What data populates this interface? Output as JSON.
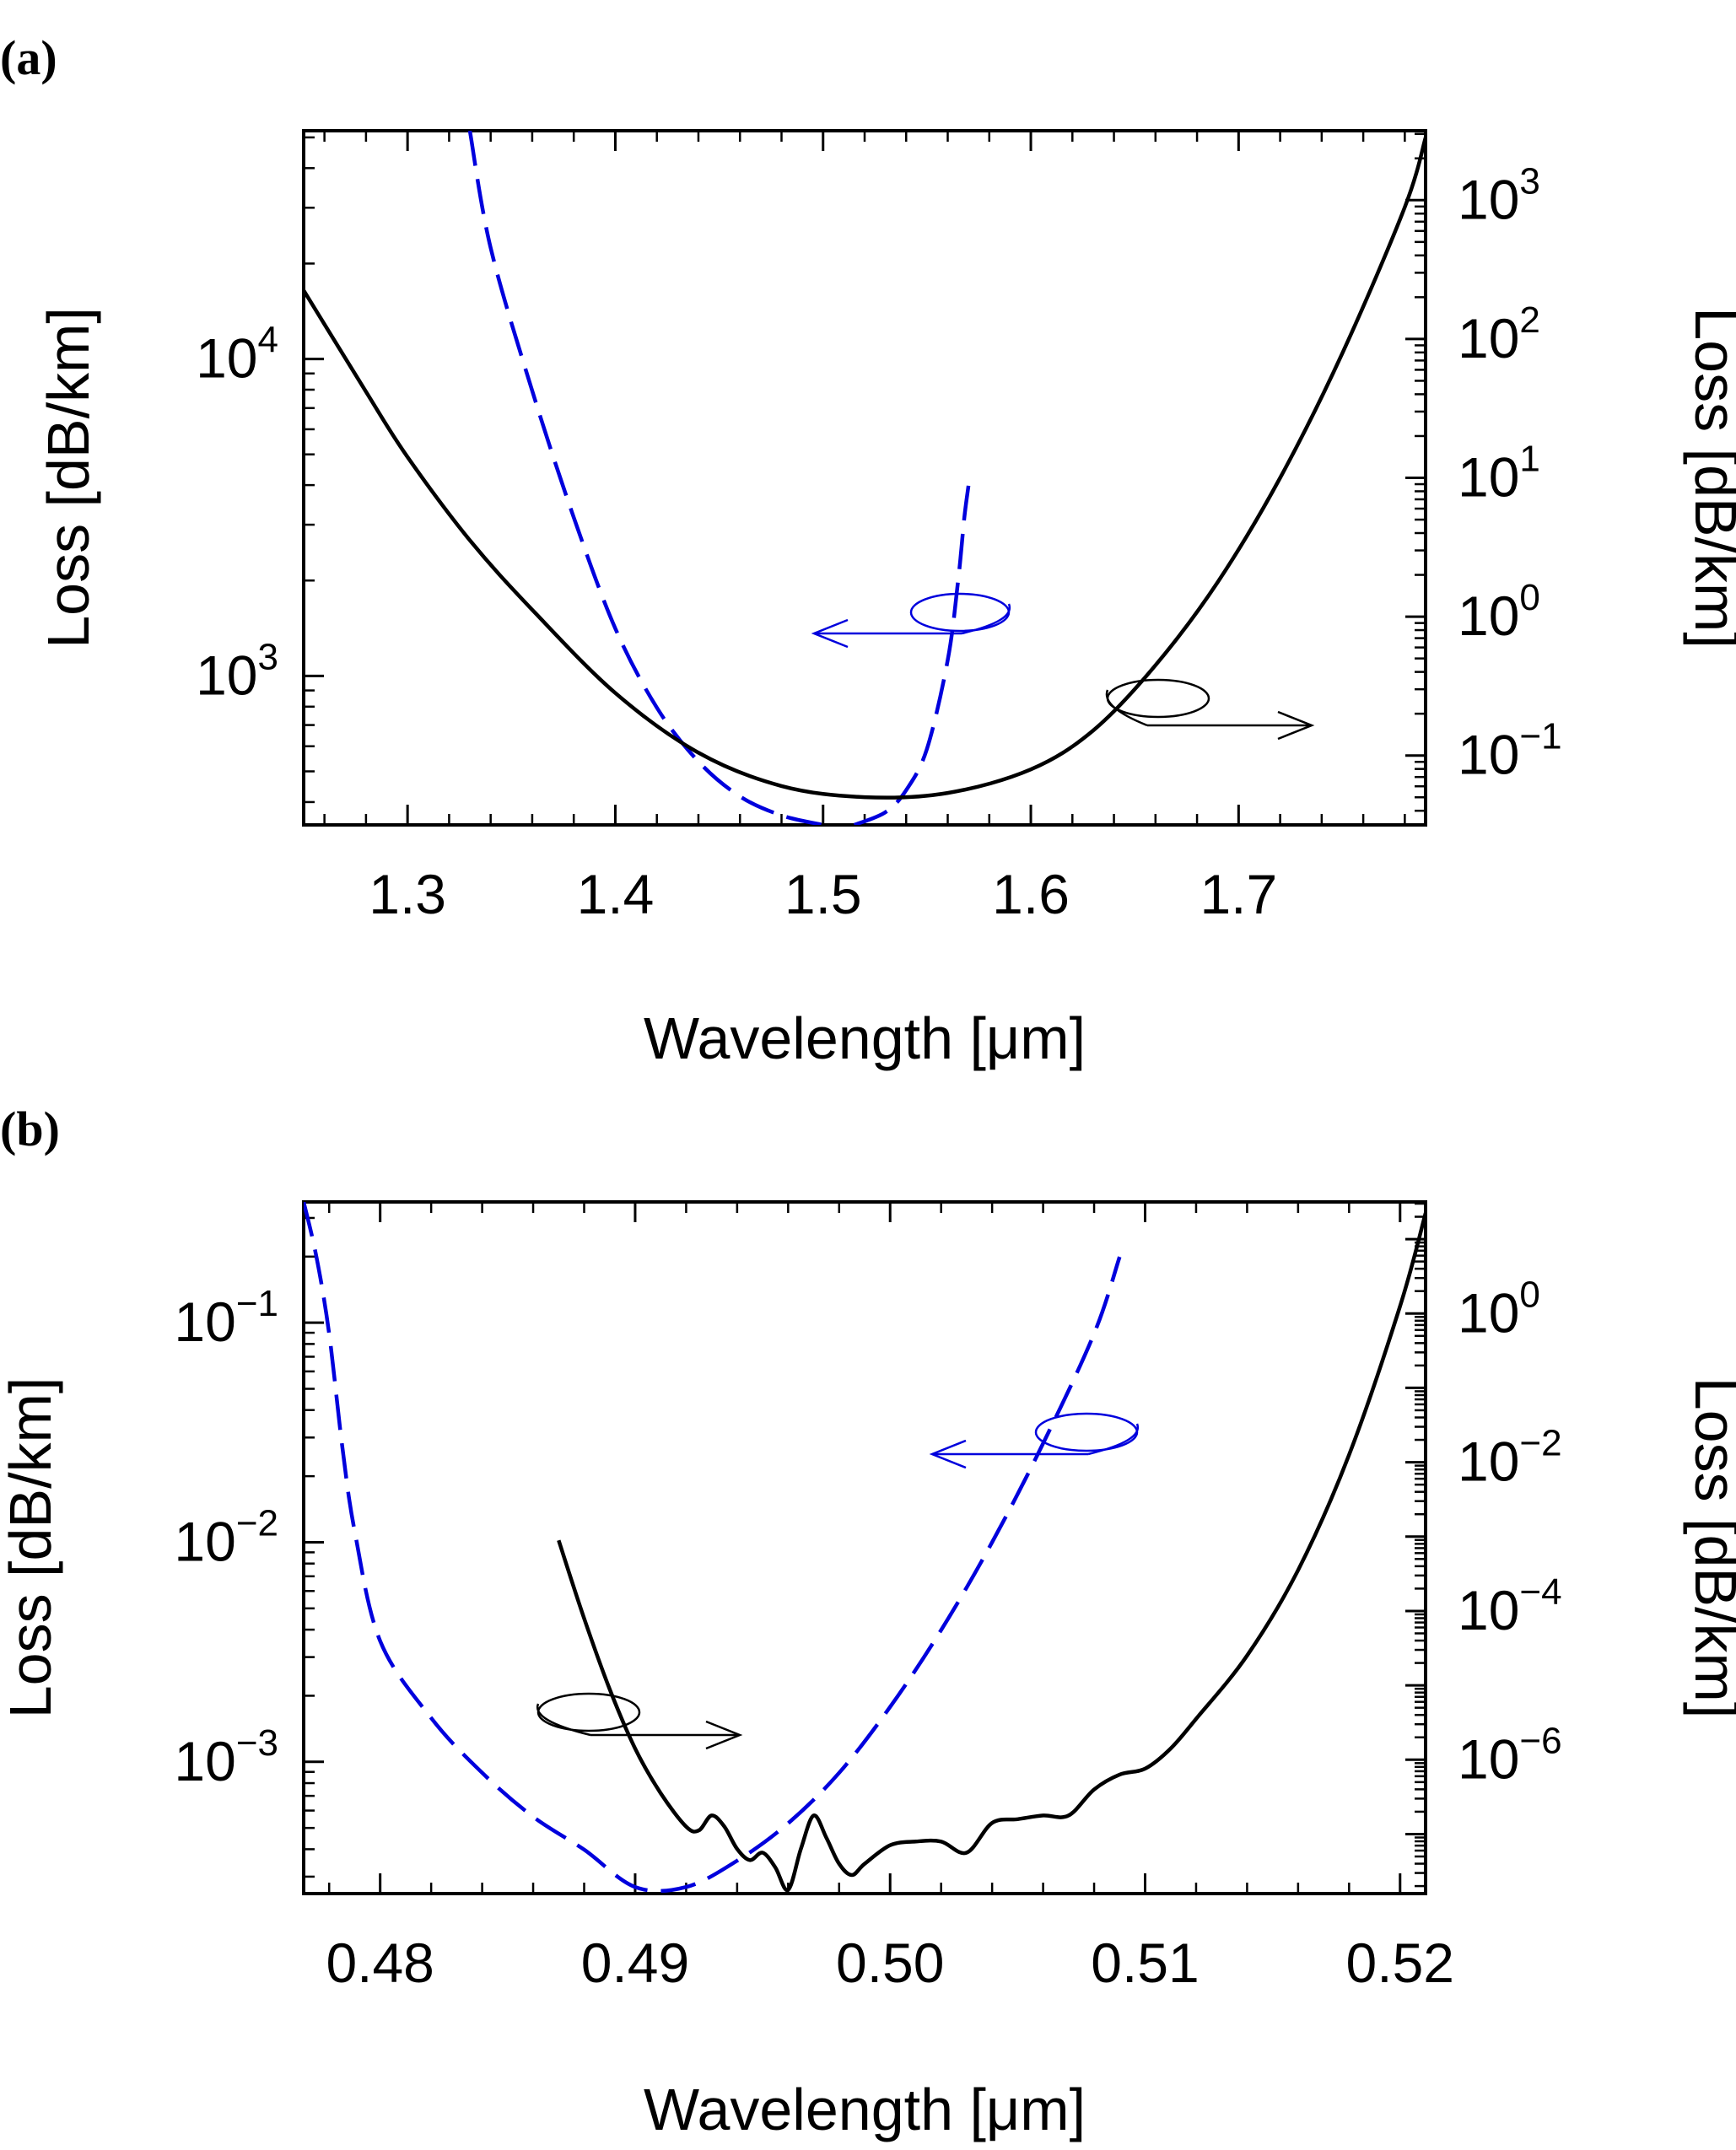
{
  "chart_data": [
    {
      "type": "line",
      "panel_label": "(a)",
      "xlabel": "Wavelength [μm]",
      "ylabel_left": "Loss [dB/km]",
      "ylabel_right": "Loss [dB/km]",
      "xlim": [
        1.25,
        1.79
      ],
      "ylim_left_log10": [
        2.53,
        4.72
      ],
      "ylim_right_log10": [
        -1.5,
        3.5
      ],
      "x_ticks": [
        {
          "value": 1.3,
          "label": "1.3"
        },
        {
          "value": 1.4,
          "label": "1.4"
        },
        {
          "value": 1.5,
          "label": "1.5"
        },
        {
          "value": 1.6,
          "label": "1.6"
        },
        {
          "value": 1.7,
          "label": "1.7"
        }
      ],
      "y_left_ticks": [
        {
          "exp": 3,
          "label_base": "10",
          "label_exp": "3"
        },
        {
          "exp": 4,
          "label_base": "10",
          "label_exp": "4"
        }
      ],
      "y_right_ticks": [
        {
          "exp": -1,
          "label_base": "10",
          "label_exp": "−1"
        },
        {
          "exp": 0,
          "label_base": "10",
          "label_exp": "0"
        },
        {
          "exp": 1,
          "label_base": "10",
          "label_exp": "1"
        },
        {
          "exp": 2,
          "label_base": "10",
          "label_exp": "2"
        },
        {
          "exp": 3,
          "label_base": "10",
          "label_exp": "3"
        }
      ],
      "series": [
        {
          "name": "left-axis loss (dashed blue)",
          "axis": "left",
          "color": "#0000dd",
          "dash": true,
          "x": [
            1.33,
            1.34,
            1.36,
            1.38,
            1.4,
            1.42,
            1.44,
            1.46,
            1.48,
            1.5
          ],
          "log10y": [
            4.72,
            4.35,
            3.9,
            3.5,
            3.15,
            2.9,
            2.73,
            2.62,
            2.56,
            2.53
          ]
        },
        {
          "name": "left-axis loss, second branch (dashed blue)",
          "axis": "left",
          "color": "#0000dd",
          "dash": true,
          "x": [
            1.515,
            1.53,
            1.54,
            1.55,
            1.56,
            1.565,
            1.568,
            1.57
          ],
          "log10y": [
            2.53,
            2.57,
            2.64,
            2.77,
            3.05,
            3.3,
            3.5,
            3.6
          ]
        },
        {
          "name": "right-axis loss (solid black)",
          "axis": "right",
          "color": "#000000",
          "dash": false,
          "x": [
            1.25,
            1.28,
            1.3,
            1.33,
            1.36,
            1.4,
            1.44,
            1.48,
            1.52,
            1.56,
            1.6,
            1.63,
            1.66,
            1.69,
            1.72,
            1.75,
            1.78,
            1.79
          ],
          "log10y": [
            2.35,
            1.62,
            1.15,
            0.55,
            0.05,
            -0.55,
            -0.98,
            -1.22,
            -1.3,
            -1.27,
            -1.1,
            -0.82,
            -0.35,
            0.25,
            1.0,
            1.9,
            2.95,
            3.45
          ]
        }
      ],
      "annotations": [
        {
          "target_axis": "left",
          "direction": "left",
          "color": "#0000dd"
        },
        {
          "target_axis": "right",
          "direction": "right",
          "color": "#000000"
        }
      ]
    },
    {
      "type": "line",
      "panel_label": "(b)",
      "xlabel": "Wavelength [μm]",
      "ylabel_left": "Loss [dB/km]",
      "ylabel_right": "Loss [dB/km]",
      "xlim": [
        0.477,
        0.521
      ],
      "ylim_left_log10": [
        -3.6,
        -0.45
      ],
      "ylim_right_log10": [
        -7.8,
        1.5
      ],
      "x_ticks": [
        {
          "value": 0.48,
          "label": "0.48"
        },
        {
          "value": 0.49,
          "label": "0.49"
        },
        {
          "value": 0.5,
          "label": "0.50"
        },
        {
          "value": 0.51,
          "label": "0.51"
        },
        {
          "value": 0.52,
          "label": "0.52"
        }
      ],
      "y_left_ticks": [
        {
          "exp": -3,
          "label_base": "10",
          "label_exp": "−3"
        },
        {
          "exp": -2,
          "label_base": "10",
          "label_exp": "−2"
        },
        {
          "exp": -1,
          "label_base": "10",
          "label_exp": "−1"
        }
      ],
      "y_right_ticks": [
        {
          "exp": -6,
          "label_base": "10",
          "label_exp": "−6"
        },
        {
          "exp": -4,
          "label_base": "10",
          "label_exp": "−4"
        },
        {
          "exp": -2,
          "label_base": "10",
          "label_exp": "−2"
        },
        {
          "exp": 0,
          "label_base": "10",
          "label_exp": "0"
        }
      ],
      "series": [
        {
          "name": "left-axis loss (dashed blue)",
          "axis": "left",
          "color": "#0000dd",
          "dash": true,
          "x": [
            0.477,
            0.4775,
            0.478,
            0.4785,
            0.479,
            0.48,
            0.482,
            0.484,
            0.486,
            0.488,
            0.49,
            0.492,
            0.494,
            0.496,
            0.498,
            0.5,
            0.502,
            0.504,
            0.506,
            0.508,
            0.509
          ],
          "log10y": [
            -0.45,
            -0.7,
            -1.05,
            -1.55,
            -1.95,
            -2.45,
            -2.8,
            -3.05,
            -3.25,
            -3.4,
            -3.57,
            -3.57,
            -3.45,
            -3.28,
            -3.05,
            -2.75,
            -2.4,
            -2.0,
            -1.55,
            -1.05,
            -0.7
          ]
        },
        {
          "name": "right-axis loss (solid black)",
          "axis": "right",
          "color": "#000000",
          "dash": false,
          "x": [
            0.487,
            0.488,
            0.489,
            0.49,
            0.491,
            0.492,
            0.4925,
            0.493,
            0.4935,
            0.494,
            0.4945,
            0.495,
            0.4955,
            0.496,
            0.4965,
            0.497,
            0.4975,
            0.498,
            0.4985,
            0.499,
            0.5,
            0.501,
            0.502,
            0.503,
            0.504,
            0.505,
            0.506,
            0.507,
            0.508,
            0.509,
            0.51,
            0.511,
            0.512,
            0.514,
            0.516,
            0.518,
            0.52,
            0.521
          ],
          "log10y": [
            -3.05,
            -4.1,
            -5.05,
            -5.85,
            -6.45,
            -6.9,
            -6.95,
            -6.75,
            -6.9,
            -7.2,
            -7.35,
            -7.25,
            -7.45,
            -7.75,
            -7.2,
            -6.75,
            -7.05,
            -7.4,
            -7.55,
            -7.4,
            -7.15,
            -7.1,
            -7.1,
            -7.25,
            -6.85,
            -6.8,
            -6.75,
            -6.75,
            -6.4,
            -6.2,
            -6.12,
            -5.85,
            -5.45,
            -4.6,
            -3.45,
            -1.9,
            0.1,
            1.35
          ]
        }
      ],
      "annotations": [
        {
          "target_axis": "left",
          "direction": "left",
          "color": "#0000dd"
        },
        {
          "target_axis": "right",
          "direction": "right",
          "color": "#000000"
        }
      ]
    }
  ]
}
